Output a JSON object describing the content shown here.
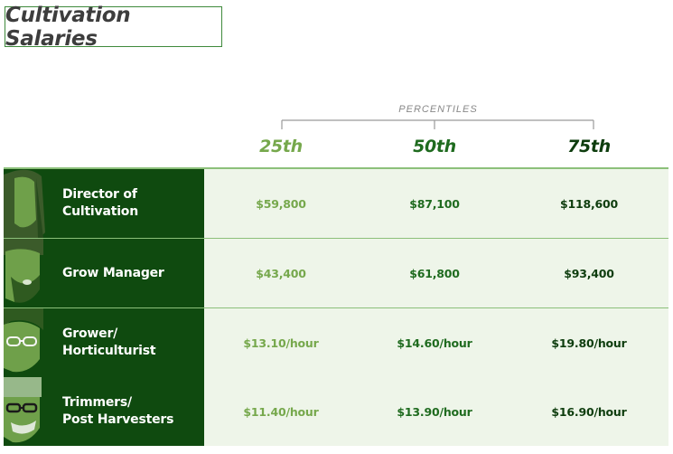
{
  "title": "Cultivation Salaries",
  "percentiles_label": "PERCENTILES",
  "colors": {
    "p25": "#76a84c",
    "p50": "#1f6b1f",
    "p75": "#0e3d0e",
    "dark_row": "#0f4a0f",
    "light_row": "#eef5e9",
    "separator": "#8cc07a"
  },
  "icons": [
    "long-hair-face-icon",
    "bearded-face-icon",
    "glasses-face-icon",
    "glasses-beanie-face-icon"
  ],
  "chart_data": {
    "type": "table",
    "title": "Cultivation Salaries",
    "column_group": "PERCENTILES",
    "columns": [
      "25th",
      "50th",
      "75th"
    ],
    "rows": [
      {
        "role": "Director of\nCultivation",
        "values": [
          "$59,800",
          "$87,100",
          "$118,600"
        ]
      },
      {
        "role": "Grow Manager",
        "values": [
          "$43,400",
          "$61,800",
          "$93,400"
        ]
      },
      {
        "role": "Grower/\nHorticulturist",
        "values": [
          "$13.10/hour",
          "$14.60/hour",
          "$19.80/hour"
        ]
      },
      {
        "role": "Trimmers/\nPost Harvesters",
        "values": [
          "$11.40/hour",
          "$13.90/hour",
          "$16.90/hour"
        ]
      }
    ]
  }
}
